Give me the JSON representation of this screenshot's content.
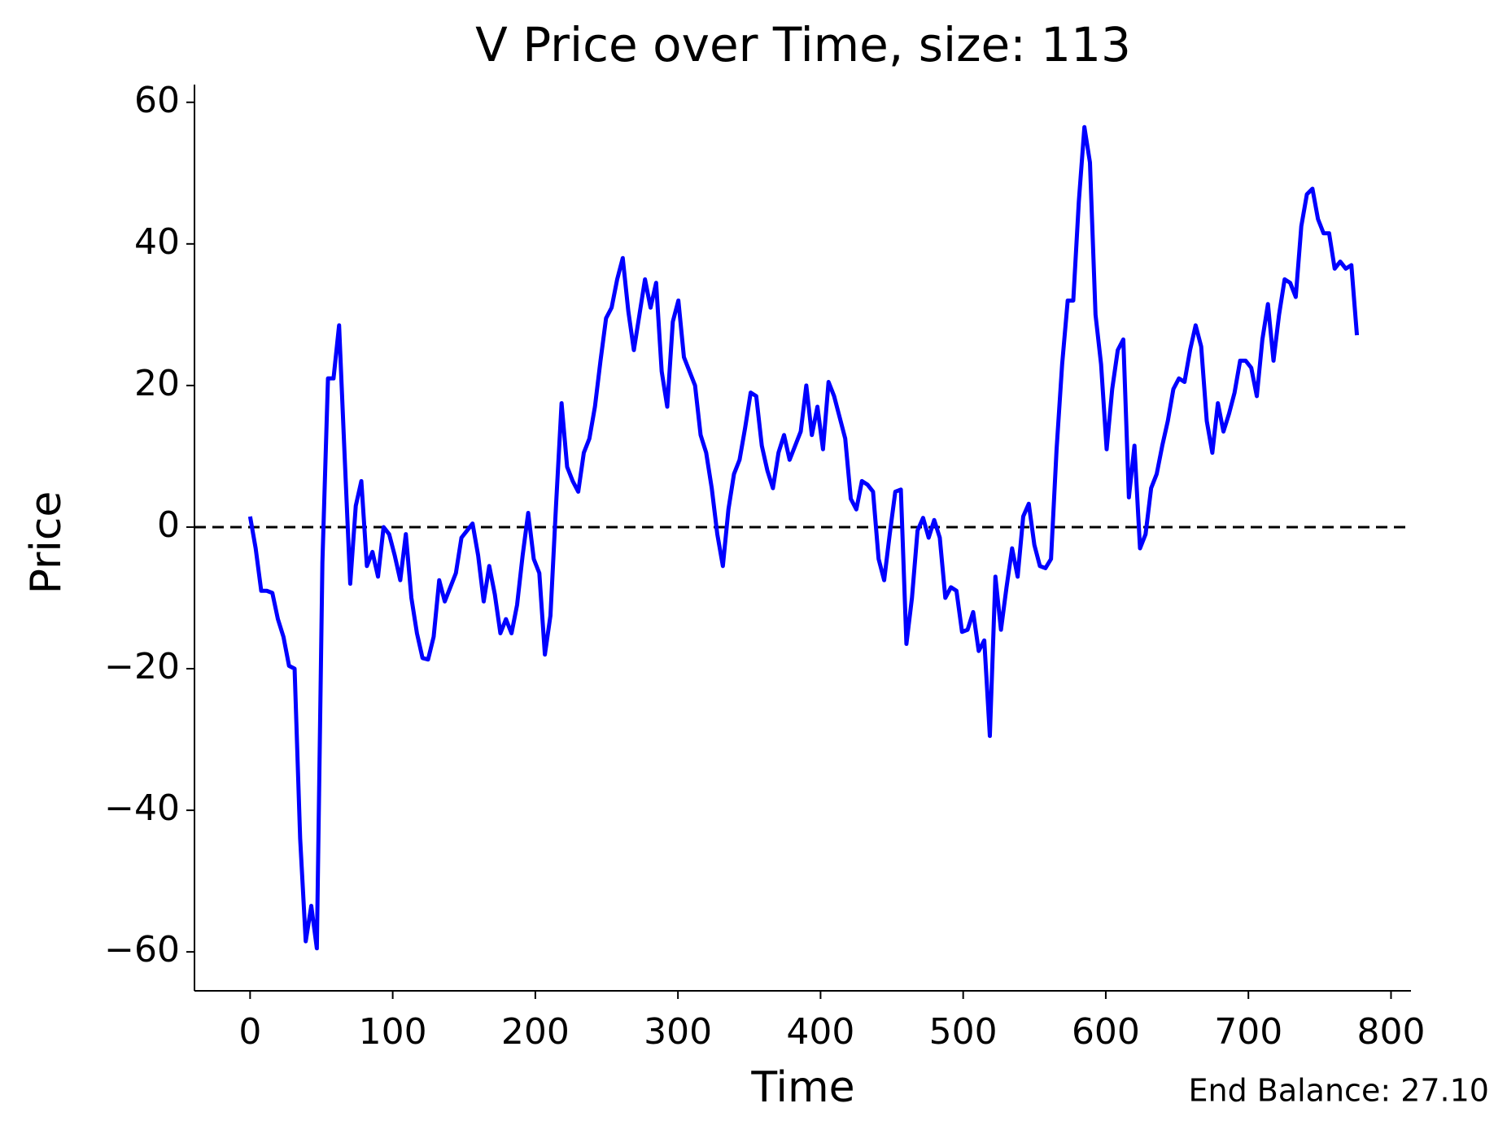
{
  "chart_data": {
    "type": "line",
    "title": "V Price over Time, size: 113",
    "x_label": "Time",
    "y_label": "Price",
    "annotation": "End Balance: 27.10",
    "hline": 0,
    "xlim": [
      -39,
      814
    ],
    "ylim": [
      -65.5,
      62.5
    ],
    "xticks": [
      0,
      100,
      200,
      300,
      400,
      500,
      600,
      700,
      800
    ],
    "yticks": [
      {
        "value": -60,
        "label": "−60"
      },
      {
        "value": -40,
        "label": "−40"
      },
      {
        "value": -20,
        "label": "−20"
      },
      0,
      20,
      40,
      60
    ],
    "x": [
      0,
      3.9,
      7.8,
      11.7,
      15.6,
      19.5,
      23.4,
      27.3,
      31.2,
      35.1,
      39,
      42.9,
      46.8,
      50.7,
      54.6,
      58.5,
      62.4,
      66.3,
      70.2,
      74.1,
      78,
      81.9,
      85.8,
      89.7,
      93.6,
      97.5,
      101.4,
      105.3,
      109.2,
      113.1,
      117,
      120.9,
      124.8,
      128.7,
      132.6,
      136.5,
      140.4,
      144.3,
      148.2,
      152.1,
      156,
      159.9,
      163.8,
      167.7,
      171.6,
      175.5,
      179.4,
      183.3,
      187.2,
      191.1,
      195,
      198.9,
      202.8,
      206.7,
      210.6,
      214.5,
      218.4,
      222.3,
      226.2,
      230.1,
      234,
      237.9,
      241.8,
      245.7,
      249.6,
      253.5,
      257.4,
      261.3,
      265.2,
      269.1,
      273,
      276.9,
      280.8,
      284.7,
      288.6,
      292.5,
      296.4,
      300.3,
      304.2,
      308.1,
      312,
      315.9,
      319.8,
      323.7,
      327.6,
      331.5,
      335.4,
      339.3,
      343.2,
      347.1,
      351,
      354.9,
      358.8,
      362.7,
      366.6,
      370.5,
      374.4,
      378.3,
      382.2,
      386.1,
      390,
      393.9,
      397.8,
      401.7,
      405.6,
      409.5,
      413.4,
      417.3,
      421.2,
      425.1,
      429,
      432.9,
      436.8,
      440.7,
      444.6,
      448.5,
      452.4,
      456.3,
      460.2,
      464.1,
      468,
      471.9,
      475.8,
      479.7,
      483.6,
      487.5,
      491.4,
      495.3,
      499.2,
      503.1,
      507,
      510.9,
      514.8,
      518.7,
      522.6,
      526.5,
      530.4,
      534.3,
      538.2,
      542.1,
      546,
      549.9,
      553.8,
      557.7,
      561.6,
      565.5,
      569.4,
      573.3,
      577.2,
      581.1,
      585,
      588.9,
      592.8,
      596.7,
      600.6,
      604.5,
      608.4,
      612.3,
      616.2,
      620.1,
      624,
      627.9,
      631.8,
      635.7,
      639.6,
      643.5,
      647.4,
      651.3,
      655.2,
      659.1,
      663,
      666.9,
      670.8,
      674.7,
      678.6,
      682.5,
      686.4,
      690.3,
      694.2,
      698.1,
      702,
      705.9,
      709.8,
      713.7,
      717.6,
      721.5,
      725.4,
      729.3,
      733.2,
      737.1,
      741,
      744.9,
      748.8,
      752.7,
      756.6,
      760.5,
      764.4,
      768.3,
      772.2,
      776.1
    ],
    "series": [
      {
        "name": "Price",
        "color": "#0000ff",
        "values": [
          1.5,
          -3,
          -9,
          -9,
          -9.3,
          -13,
          -15.5,
          -19.6,
          -20,
          -44,
          -58.5,
          -53.5,
          -59.5,
          -5,
          21,
          21,
          28.5,
          10,
          -8,
          3,
          6.5,
          -5.5,
          -3.5,
          -7,
          0,
          -1,
          -4,
          -7.5,
          -1,
          -10,
          -15,
          -18.5,
          -18.7,
          -15.5,
          -7.5,
          -10.5,
          -8.5,
          -6.5,
          -1.5,
          -0.5,
          0.5,
          -4,
          -10.5,
          -5.5,
          -9.5,
          -15,
          -13,
          -15,
          -11,
          -4,
          2,
          -4.5,
          -6.5,
          -18,
          -12.5,
          3,
          17.5,
          8.5,
          6.5,
          5,
          10.5,
          12.5,
          17,
          23.5,
          29.5,
          31,
          35,
          38,
          30.5,
          25,
          30,
          35,
          31,
          34.5,
          22,
          17,
          29,
          32,
          24,
          22,
          20,
          13,
          10.5,
          5.5,
          -1,
          -5.5,
          2.5,
          7.5,
          9.5,
          14,
          19,
          18.5,
          11.5,
          8,
          5.5,
          10.5,
          13,
          9.5,
          11.5,
          13.5,
          20,
          13,
          17,
          11,
          20.5,
          18.5,
          15.5,
          12.5,
          4,
          2.5,
          6.5,
          6,
          5,
          -4.5,
          -7.5,
          -1,
          5,
          5.3,
          -16.5,
          -10,
          -0.5,
          1.3,
          -1.5,
          1,
          -1.5,
          -10,
          -8.5,
          -9,
          -14.8,
          -14.5,
          -12,
          -17.5,
          -16,
          -29.5,
          -7,
          -14.5,
          -8.5,
          -3,
          -7,
          1.5,
          3.3,
          -2.5,
          -5.5,
          -5.8,
          -4.5,
          11,
          23,
          32,
          32,
          46,
          56.5,
          51.5,
          30,
          23,
          11,
          19.5,
          25,
          26.5,
          4.2,
          11.5,
          -3,
          -1,
          5.5,
          7.5,
          11.5,
          15,
          19.5,
          21,
          20.5,
          25,
          28.5,
          25.5,
          15,
          10.5,
          17.5,
          13.5,
          16,
          19,
          23.5,
          23.5,
          22.5,
          18.5,
          26.5,
          31.5,
          23.5,
          30,
          35,
          34.5,
          32.5,
          42.5,
          47,
          47.8,
          43.5,
          41.5,
          41.5,
          36.5,
          37.5,
          36.5,
          37,
          27.1
        ]
      }
    ]
  }
}
